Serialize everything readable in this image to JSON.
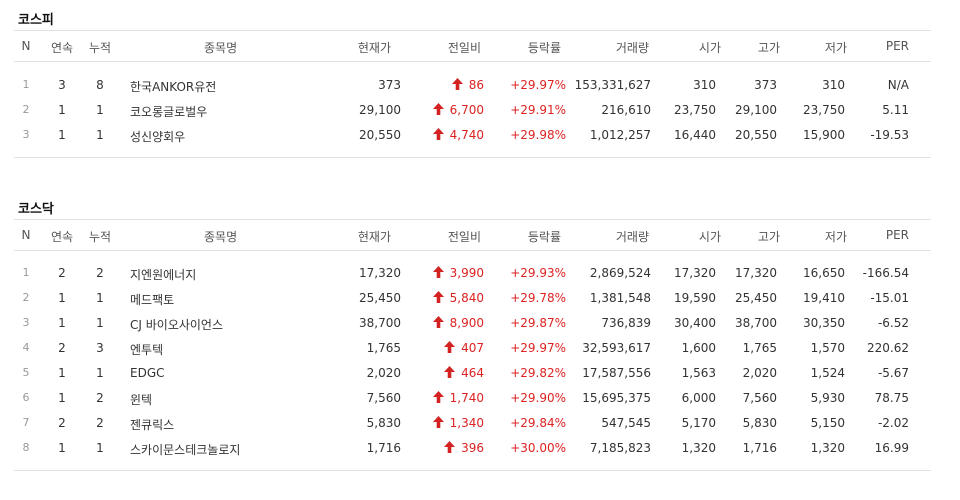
{
  "headers": {
    "n": "N",
    "consecutive": "연속",
    "cumulative": "누적",
    "name": "종목명",
    "price": "현재가",
    "change": "전일비",
    "rate": "등락률",
    "volume": "거래량",
    "open": "시가",
    "high": "고가",
    "low": "저가",
    "per": "PER"
  },
  "colors": {
    "up": "#d22222",
    "border": "#e1e1e1"
  },
  "icons": {
    "change": "up-arrow-icon"
  },
  "markets": [
    {
      "title": "코스피",
      "rows": [
        {
          "n": "1",
          "consecutive": "3",
          "cumulative": "8",
          "name": "한국ANKOR유전",
          "price": "373",
          "change": "86",
          "rate": "+29.97%",
          "volume": "153,331,627",
          "open": "310",
          "high": "373",
          "low": "310",
          "per": "N/A"
        },
        {
          "n": "2",
          "consecutive": "1",
          "cumulative": "1",
          "name": "코오롱글로벌우",
          "price": "29,100",
          "change": "6,700",
          "rate": "+29.91%",
          "volume": "216,610",
          "open": "23,750",
          "high": "29,100",
          "low": "23,750",
          "per": "5.11"
        },
        {
          "n": "3",
          "consecutive": "1",
          "cumulative": "1",
          "name": "성신양회우",
          "price": "20,550",
          "change": "4,740",
          "rate": "+29.98%",
          "volume": "1,012,257",
          "open": "16,440",
          "high": "20,550",
          "low": "15,900",
          "per": "-19.53"
        }
      ]
    },
    {
      "title": "코스닥",
      "rows": [
        {
          "n": "1",
          "consecutive": "2",
          "cumulative": "2",
          "name": "지엔원에너지",
          "price": "17,320",
          "change": "3,990",
          "rate": "+29.93%",
          "volume": "2,869,524",
          "open": "17,320",
          "high": "17,320",
          "low": "16,650",
          "per": "-166.54"
        },
        {
          "n": "2",
          "consecutive": "1",
          "cumulative": "1",
          "name": "메드팩토",
          "price": "25,450",
          "change": "5,840",
          "rate": "+29.78%",
          "volume": "1,381,548",
          "open": "19,590",
          "high": "25,450",
          "low": "19,410",
          "per": "-15.01"
        },
        {
          "n": "3",
          "consecutive": "1",
          "cumulative": "1",
          "name": "CJ 바이오사이언스",
          "price": "38,700",
          "change": "8,900",
          "rate": "+29.87%",
          "volume": "736,839",
          "open": "30,400",
          "high": "38,700",
          "low": "30,350",
          "per": "-6.52"
        },
        {
          "n": "4",
          "consecutive": "2",
          "cumulative": "3",
          "name": "엔투텍",
          "price": "1,765",
          "change": "407",
          "rate": "+29.97%",
          "volume": "32,593,617",
          "open": "1,600",
          "high": "1,765",
          "low": "1,570",
          "per": "220.62"
        },
        {
          "n": "5",
          "consecutive": "1",
          "cumulative": "1",
          "name": "EDGC",
          "price": "2,020",
          "change": "464",
          "rate": "+29.82%",
          "volume": "17,587,556",
          "open": "1,563",
          "high": "2,020",
          "low": "1,524",
          "per": "-5.67"
        },
        {
          "n": "6",
          "consecutive": "1",
          "cumulative": "2",
          "name": "윈텍",
          "price": "7,560",
          "change": "1,740",
          "rate": "+29.90%",
          "volume": "15,695,375",
          "open": "6,000",
          "high": "7,560",
          "low": "5,930",
          "per": "78.75"
        },
        {
          "n": "7",
          "consecutive": "2",
          "cumulative": "2",
          "name": "젠큐릭스",
          "price": "5,830",
          "change": "1,340",
          "rate": "+29.84%",
          "volume": "547,545",
          "open": "5,170",
          "high": "5,830",
          "low": "5,150",
          "per": "-2.02"
        },
        {
          "n": "8",
          "consecutive": "1",
          "cumulative": "1",
          "name": "스카이문스테크놀로지",
          "price": "1,716",
          "change": "396",
          "rate": "+30.00%",
          "volume": "7,185,823",
          "open": "1,320",
          "high": "1,716",
          "low": "1,320",
          "per": "16.99"
        }
      ]
    }
  ]
}
